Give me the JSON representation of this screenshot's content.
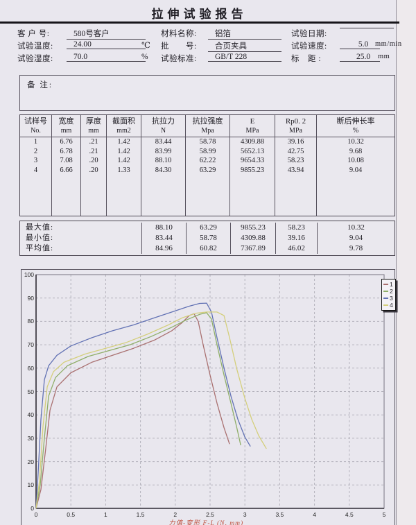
{
  "title": "拉伸试验报告",
  "header_fields": {
    "row1": {
      "f1_label": "客 户 号:",
      "f1_value": "580号客户",
      "f1_unit": "",
      "f2_label": "材料名称:",
      "f2_value": "铝箔",
      "f3_label": "试验日期:",
      "f3_value": "",
      "f3_unit": ""
    },
    "row2": {
      "f1_label": "试验温度:",
      "f1_value": "24.00",
      "f1_unit": "℃",
      "f2_label": "批　　号:",
      "f2_value": "合页夹具",
      "f3_label": "试验速度:",
      "f3_value": "5.0",
      "f3_unit": "mm/min"
    },
    "row3": {
      "f1_label": "试验湿度:",
      "f1_value": "70.0",
      "f1_unit": "%",
      "f2_label": "试验标准:",
      "f2_value": "GB/T 228",
      "f3_label": "标　距 :",
      "f3_value": "25.0",
      "f3_unit": "mm"
    }
  },
  "remark_label": "备 注:",
  "table": {
    "columns": [
      {
        "cn": "试样号",
        "unit": "No."
      },
      {
        "cn": "宽度",
        "unit": "mm"
      },
      {
        "cn": "厚度",
        "unit": "mm"
      },
      {
        "cn": "截面积",
        "unit": "mm2"
      },
      {
        "cn": "抗拉力",
        "unit": "N"
      },
      {
        "cn": "抗拉强度",
        "unit": "Mpa"
      },
      {
        "cn": "E",
        "unit": "MPa"
      },
      {
        "cn": "Rp0. 2",
        "unit": "MPa"
      },
      {
        "cn": "断后伸长率",
        "unit": "%"
      }
    ],
    "rows": [
      [
        "1",
        "6.76",
        ".21",
        "1.42",
        "83.44",
        "58.78",
        "4309.88",
        "39.16",
        "10.32"
      ],
      [
        "2",
        "6.78",
        ".21",
        "1.42",
        "83.99",
        "58.99",
        "5652.13",
        "42.75",
        "9.68"
      ],
      [
        "3",
        "7.08",
        ".20",
        "1.42",
        "88.10",
        "62.22",
        "9654.33",
        "58.23",
        "10.08"
      ],
      [
        "4",
        "6.66",
        ".20",
        "1.33",
        "84.30",
        "63.29",
        "9855.23",
        "43.94",
        "9.04"
      ]
    ],
    "stats": [
      {
        "label": "最大值:",
        "values": [
          "88.10",
          "63.29",
          "9855.23",
          "58.23",
          "10.32"
        ]
      },
      {
        "label": "最小值:",
        "values": [
          "83.44",
          "58.78",
          "4309.88",
          "39.16",
          "9.04"
        ]
      },
      {
        "label": "平均值:",
        "values": [
          "84.96",
          "60.82",
          "7367.89",
          "46.02",
          "9.78"
        ]
      }
    ]
  },
  "chart_data": {
    "type": "line",
    "title": "",
    "xlabel": "力值-变形 F-L  (N, mm)",
    "ylabel": "",
    "xlim": [
      0,
      5
    ],
    "ylim": [
      0,
      100
    ],
    "x_ticks": [
      "0",
      "0.5",
      "1",
      "1.5",
      "2",
      "2.5",
      "3",
      "3.5",
      "4",
      "4.5",
      "5"
    ],
    "y_ticks": [
      "0",
      "10",
      "20",
      "30",
      "40",
      "50",
      "60",
      "70",
      "80",
      "90",
      "100"
    ],
    "grid": true,
    "legend_position": "top-right",
    "legend_labels": [
      "1",
      "2",
      "3",
      "4"
    ],
    "series": [
      {
        "name": "1",
        "color": "#a97070",
        "points": [
          [
            0,
            0
          ],
          [
            0.07,
            8
          ],
          [
            0.14,
            26
          ],
          [
            0.2,
            42
          ],
          [
            0.3,
            52
          ],
          [
            0.5,
            58
          ],
          [
            0.8,
            62.5
          ],
          [
            1.1,
            65.5
          ],
          [
            1.4,
            68.5
          ],
          [
            1.7,
            72
          ],
          [
            1.95,
            76
          ],
          [
            2.1,
            79.5
          ],
          [
            2.2,
            82.5
          ],
          [
            2.27,
            83.3
          ],
          [
            2.33,
            80
          ],
          [
            2.4,
            70
          ],
          [
            2.5,
            57
          ],
          [
            2.6,
            45
          ],
          [
            2.7,
            34.5
          ],
          [
            2.78,
            27.5
          ]
        ]
      },
      {
        "name": "2",
        "color": "#8fae68",
        "points": [
          [
            0,
            0
          ],
          [
            0.06,
            10
          ],
          [
            0.12,
            30
          ],
          [
            0.18,
            48
          ],
          [
            0.28,
            56
          ],
          [
            0.45,
            61
          ],
          [
            0.75,
            65
          ],
          [
            1.05,
            67.5
          ],
          [
            1.35,
            70
          ],
          [
            1.65,
            73.5
          ],
          [
            1.95,
            77.5
          ],
          [
            2.15,
            80.5
          ],
          [
            2.35,
            83
          ],
          [
            2.45,
            83.7
          ],
          [
            2.52,
            81
          ],
          [
            2.6,
            70
          ],
          [
            2.7,
            57
          ],
          [
            2.8,
            45
          ],
          [
            2.88,
            35
          ],
          [
            2.94,
            27
          ]
        ]
      },
      {
        "name": "3",
        "color": "#6272b4",
        "points": [
          [
            0,
            0
          ],
          [
            0.03,
            15
          ],
          [
            0.07,
            38
          ],
          [
            0.12,
            55
          ],
          [
            0.18,
            61
          ],
          [
            0.3,
            65.5
          ],
          [
            0.5,
            69.5
          ],
          [
            0.8,
            73
          ],
          [
            1.1,
            76
          ],
          [
            1.4,
            78.5
          ],
          [
            1.7,
            81.5
          ],
          [
            2.0,
            84.5
          ],
          [
            2.2,
            86.5
          ],
          [
            2.35,
            87.7
          ],
          [
            2.45,
            87.8
          ],
          [
            2.52,
            84
          ],
          [
            2.6,
            73
          ],
          [
            2.7,
            60
          ],
          [
            2.8,
            48
          ],
          [
            2.9,
            38
          ],
          [
            3.0,
            30.5
          ],
          [
            3.08,
            26.5
          ]
        ]
      },
      {
        "name": "4",
        "color": "#d4cf7c",
        "points": [
          [
            0,
            0
          ],
          [
            0.05,
            12
          ],
          [
            0.1,
            35
          ],
          [
            0.16,
            52
          ],
          [
            0.25,
            58.5
          ],
          [
            0.4,
            62.5
          ],
          [
            0.7,
            66
          ],
          [
            1.0,
            68.5
          ],
          [
            1.3,
            71
          ],
          [
            1.6,
            74.5
          ],
          [
            1.9,
            78.5
          ],
          [
            2.1,
            81.5
          ],
          [
            2.3,
            83.5
          ],
          [
            2.45,
            84
          ],
          [
            2.6,
            84
          ],
          [
            2.7,
            82.5
          ],
          [
            2.78,
            73
          ],
          [
            2.88,
            60
          ],
          [
            3.0,
            47
          ],
          [
            3.1,
            38
          ],
          [
            3.2,
            31
          ],
          [
            3.31,
            25.5
          ]
        ]
      }
    ]
  },
  "colors": {
    "paper": "#e9e7ee",
    "table_border": "#57525e",
    "xlabel_accent": "#c0503f"
  }
}
